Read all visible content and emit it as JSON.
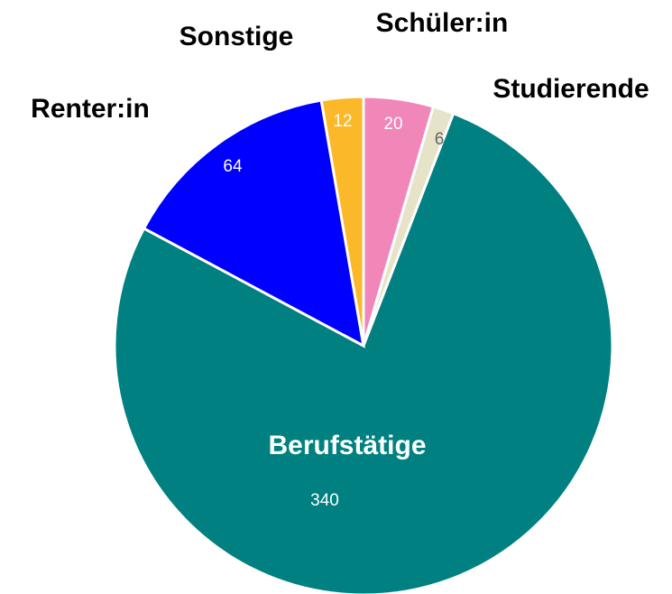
{
  "chart_data": {
    "type": "pie",
    "categories": [
      "Schüler:in",
      "Studierende",
      "Berufstätige",
      "Renter:in",
      "Sonstige"
    ],
    "values": [
      20,
      6,
      340,
      64,
      12
    ],
    "colors": [
      "#f186b8",
      "#e6e3c8",
      "#008080",
      "#0000ff",
      "#fbb829"
    ]
  }
}
